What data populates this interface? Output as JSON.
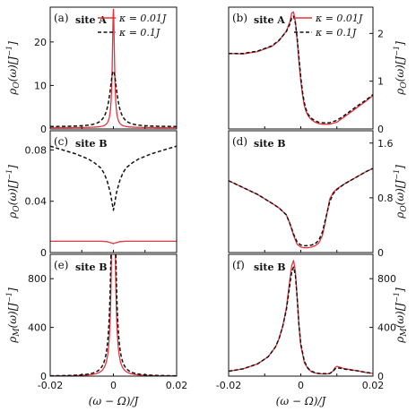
{
  "colors": {
    "red": "#e8323c",
    "black": "#111111"
  },
  "legend": [
    {
      "label": "κ = 0.01J",
      "color": "#e8323c",
      "dash": "solid"
    },
    {
      "label": "κ = 0.1J",
      "color": "#111111",
      "dash": "dashed"
    }
  ],
  "chart_data": [
    {
      "type": "line",
      "panel": "(a)",
      "site": "site A",
      "ylabel": "ρ_O(ω)[J⁻¹]",
      "ylabel_side": "left",
      "xlabel": "",
      "xlim": [
        -0.02,
        0.02
      ],
      "ylim": [
        0,
        28
      ],
      "yticks": [
        0,
        10,
        20
      ],
      "xticks_shown": false,
      "legend": true,
      "series": [
        {
          "name": "κ = 0.01J",
          "style": "red-solid",
          "shape": "lorentz",
          "base": 0.3,
          "amp": 27.2,
          "width": 0.0004
        },
        {
          "name": "κ = 0.1J",
          "style": "black-dashed",
          "shape": "lorentz",
          "base": 0.5,
          "amp": 12.8,
          "width": 0.0014
        }
      ]
    },
    {
      "type": "line",
      "panel": "(b)",
      "site": "site A",
      "ylabel": "ρ_O(ω)[J⁻¹]",
      "ylabel_side": "right",
      "xlabel": "",
      "xlim": [
        -0.02,
        0.02
      ],
      "ylim": [
        0,
        2.55
      ],
      "yticks": [
        0,
        1,
        2
      ],
      "xticks_shown": false,
      "legend": true,
      "series": [
        {
          "name": "κ = 0.01J",
          "style": "red-solid",
          "x": [
            -0.02,
            -0.016,
            -0.012,
            -0.008,
            -0.006,
            -0.004,
            -0.003,
            -0.0025,
            -0.002,
            -0.0015,
            -0.001,
            -0.0005,
            0.0,
            0.0005,
            0.001,
            0.0015,
            0.002,
            0.0025,
            0.003,
            0.004,
            0.005,
            0.006,
            0.008,
            0.01,
            0.012,
            0.014,
            0.016,
            0.018,
            0.02
          ],
          "values": [
            1.58,
            1.57,
            1.62,
            1.73,
            1.85,
            2.05,
            2.25,
            2.43,
            2.45,
            2.25,
            1.85,
            1.4,
            1.0,
            0.7,
            0.48,
            0.36,
            0.28,
            0.23,
            0.19,
            0.14,
            0.11,
            0.1,
            0.1,
            0.14,
            0.25,
            0.36,
            0.47,
            0.58,
            0.7
          ]
        },
        {
          "name": "κ = 0.1J",
          "style": "black-dashed",
          "x": [
            -0.02,
            -0.016,
            -0.012,
            -0.008,
            -0.006,
            -0.004,
            -0.003,
            -0.0025,
            -0.002,
            -0.0015,
            -0.001,
            -0.0005,
            0.0,
            0.0005,
            0.001,
            0.0015,
            0.002,
            0.0025,
            0.003,
            0.004,
            0.005,
            0.006,
            0.008,
            0.01,
            0.012,
            0.014,
            0.016,
            0.018,
            0.02
          ],
          "values": [
            1.58,
            1.58,
            1.63,
            1.74,
            1.86,
            2.04,
            2.2,
            2.33,
            2.36,
            2.22,
            1.9,
            1.48,
            1.08,
            0.76,
            0.54,
            0.4,
            0.31,
            0.26,
            0.22,
            0.17,
            0.14,
            0.13,
            0.13,
            0.18,
            0.28,
            0.39,
            0.5,
            0.6,
            0.72
          ]
        }
      ]
    },
    {
      "type": "line",
      "panel": "(c)",
      "site": "site B",
      "ylabel": "ρ_O(ω)[J⁻¹]",
      "ylabel_side": "left",
      "xlabel": "",
      "xlim": [
        -0.02,
        0.02
      ],
      "ylim": [
        0,
        0.095
      ],
      "yticks": [
        0,
        0.04,
        0.08
      ],
      "xticks_shown": false,
      "legend": false,
      "series": [
        {
          "name": "κ = 0.01J",
          "style": "red-solid",
          "x": [
            -0.02,
            -0.01,
            -0.004,
            -0.002,
            -0.001,
            0.0,
            0.001,
            0.002,
            0.004,
            0.01,
            0.02
          ],
          "values": [
            0.0088,
            0.0088,
            0.0088,
            0.0085,
            0.0078,
            0.007,
            0.0078,
            0.0085,
            0.0088,
            0.0088,
            0.0088
          ]
        },
        {
          "name": "κ = 0.1J",
          "style": "black-dashed",
          "x": [
            -0.02,
            -0.016,
            -0.012,
            -0.008,
            -0.006,
            -0.004,
            -0.003,
            -0.002,
            -0.001,
            -0.0005,
            0.0,
            0.0005,
            0.001,
            0.002,
            0.003,
            0.004,
            0.006,
            0.008,
            0.012,
            0.016,
            0.02
          ],
          "values": [
            0.083,
            0.08,
            0.077,
            0.073,
            0.07,
            0.066,
            0.062,
            0.056,
            0.047,
            0.04,
            0.033,
            0.04,
            0.047,
            0.056,
            0.062,
            0.066,
            0.07,
            0.073,
            0.077,
            0.08,
            0.083
          ]
        }
      ]
    },
    {
      "type": "line",
      "panel": "(d)",
      "site": "site B",
      "ylabel": "ρ_O(ω)[J⁻¹]",
      "ylabel_side": "right",
      "xlabel": "",
      "xlim": [
        -0.02,
        0.02
      ],
      "ylim": [
        0,
        1.78
      ],
      "yticks": [
        0,
        0.8,
        1.6
      ],
      "xticks_shown": false,
      "legend": false,
      "series": [
        {
          "name": "κ = 0.01J",
          "style": "red-solid",
          "x": [
            -0.02,
            -0.016,
            -0.012,
            -0.008,
            -0.006,
            -0.004,
            -0.003,
            -0.002,
            -0.001,
            0.0,
            0.001,
            0.002,
            0.003,
            0.004,
            0.005,
            0.006,
            0.007,
            0.008,
            0.009,
            0.01,
            0.012,
            0.014,
            0.016,
            0.018,
            0.02
          ],
          "values": [
            1.05,
            0.95,
            0.85,
            0.72,
            0.65,
            0.55,
            0.42,
            0.25,
            0.12,
            0.08,
            0.07,
            0.07,
            0.08,
            0.1,
            0.14,
            0.25,
            0.5,
            0.78,
            0.88,
            0.93,
            1.0,
            1.06,
            1.12,
            1.18,
            1.23
          ]
        },
        {
          "name": "κ = 0.1J",
          "style": "black-dashed",
          "x": [
            -0.02,
            -0.016,
            -0.012,
            -0.008,
            -0.006,
            -0.004,
            -0.003,
            -0.002,
            -0.001,
            0.0,
            0.001,
            0.002,
            0.003,
            0.004,
            0.005,
            0.006,
            0.007,
            0.008,
            0.009,
            0.01,
            0.012,
            0.014,
            0.016,
            0.018,
            0.02
          ],
          "values": [
            1.05,
            0.95,
            0.85,
            0.72,
            0.65,
            0.55,
            0.42,
            0.27,
            0.15,
            0.11,
            0.1,
            0.1,
            0.11,
            0.13,
            0.18,
            0.3,
            0.52,
            0.74,
            0.86,
            0.92,
            1.0,
            1.06,
            1.12,
            1.18,
            1.23
          ]
        }
      ]
    },
    {
      "type": "line",
      "panel": "(e)",
      "site": "site B",
      "ylabel": "ρ_M(ω)[J⁻¹]",
      "ylabel_side": "left",
      "xlabel": "(ω − Ω)/J",
      "xlim": [
        -0.02,
        0.02
      ],
      "ylim": [
        0,
        1000
      ],
      "yticks": [
        0,
        400,
        800
      ],
      "xticks": [
        -0.02,
        0,
        0.02
      ],
      "xtick_labels": [
        "-0.02",
        "0",
        "0.02"
      ],
      "xticks_shown": true,
      "legend": false,
      "series": [
        {
          "name": "κ = 0.01J",
          "style": "red-solid",
          "shape": "lorentz",
          "base": 0,
          "amp": 2500,
          "width": 0.0005
        },
        {
          "name": "κ = 0.1J",
          "style": "black-dashed",
          "shape": "lorentz",
          "base": 0,
          "amp": 2200,
          "width": 0.0007
        }
      ]
    },
    {
      "type": "line",
      "panel": "(f)",
      "site": "site B",
      "ylabel": "ρ_M(ω)[J⁻¹]",
      "ylabel_side": "right",
      "xlabel": "(ω − Ω)/J",
      "xlim": [
        -0.02,
        0.02
      ],
      "ylim": [
        0,
        1000
      ],
      "yticks": [
        0,
        400,
        800
      ],
      "xticks": [
        -0.02,
        0,
        0.02
      ],
      "xtick_labels": [
        "-0.02",
        "0",
        "0.02"
      ],
      "xticks_shown": true,
      "legend": false,
      "series": [
        {
          "name": "κ = 0.01J",
          "style": "red-solid",
          "x": [
            -0.02,
            -0.016,
            -0.012,
            -0.009,
            -0.007,
            -0.006,
            -0.005,
            -0.004,
            -0.0035,
            -0.003,
            -0.0025,
            -0.002,
            -0.0015,
            -0.001,
            -0.0005,
            0.0,
            0.001,
            0.002,
            0.003,
            0.004,
            0.005,
            0.006,
            0.007,
            0.008,
            0.009,
            0.0095,
            0.01,
            0.011,
            0.012,
            0.014,
            0.016,
            0.018,
            0.02
          ],
          "values": [
            40,
            60,
            100,
            160,
            240,
            310,
            410,
            560,
            680,
            800,
            910,
            950,
            860,
            640,
            410,
            250,
            110,
            60,
            35,
            25,
            20,
            18,
            18,
            20,
            45,
            70,
            80,
            72,
            62,
            52,
            42,
            30,
            22
          ]
        },
        {
          "name": "κ = 0.1J",
          "style": "black-dashed",
          "x": [
            -0.02,
            -0.016,
            -0.012,
            -0.009,
            -0.007,
            -0.006,
            -0.005,
            -0.004,
            -0.0035,
            -0.003,
            -0.0025,
            -0.002,
            -0.0015,
            -0.001,
            -0.0005,
            0.0,
            0.001,
            0.002,
            0.003,
            0.004,
            0.005,
            0.006,
            0.007,
            0.008,
            0.009,
            0.0095,
            0.01,
            0.011,
            0.012,
            0.014,
            0.016,
            0.018,
            0.02
          ],
          "values": [
            40,
            60,
            100,
            160,
            240,
            310,
            410,
            545,
            650,
            760,
            860,
            895,
            830,
            640,
            420,
            265,
            120,
            65,
            40,
            28,
            22,
            20,
            20,
            22,
            40,
            60,
            68,
            64,
            58,
            50,
            42,
            31,
            23
          ]
        }
      ]
    }
  ]
}
